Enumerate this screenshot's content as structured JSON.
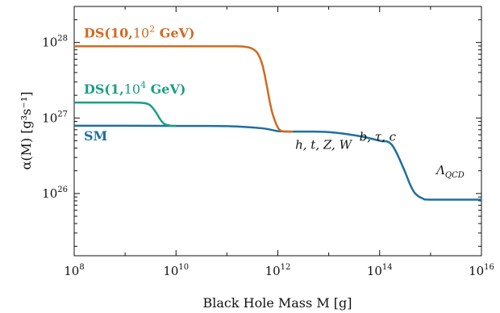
{
  "chart_data": {
    "type": "line",
    "xlabel": "Black Hole Mass M [g]",
    "ylabel": "α(M) [g³s⁻¹]",
    "xscale": "log",
    "yscale": "log",
    "xlim": [
      100000000.0,
      1e+16
    ],
    "ylim": [
      1.5e+25,
      3e+28
    ],
    "x_ticks": [
      {
        "mantissa": "10",
        "exp": "8"
      },
      {
        "mantissa": "10",
        "exp": "10"
      },
      {
        "mantissa": "10",
        "exp": "12"
      },
      {
        "mantissa": "10",
        "exp": "14"
      },
      {
        "mantissa": "10",
        "exp": "16"
      }
    ],
    "x_tick_values": [
      100000000.0,
      10000000000.0,
      1000000000000.0,
      100000000000000.0,
      1e+16
    ],
    "y_ticks": [
      {
        "mantissa": "10",
        "exp": "26"
      },
      {
        "mantissa": "10",
        "exp": "27"
      },
      {
        "mantissa": "10",
        "exp": "28"
      }
    ],
    "y_tick_values": [
      1e+26,
      1e+27,
      1e+28
    ],
    "grid": false,
    "series": [
      {
        "name": "SM",
        "label_parts": [
          "SM"
        ],
        "color": "#1f6f9f",
        "x": [
          100000000.0,
          1000000000.0,
          10000000000.0,
          100000000000.0,
          500000000000.0,
          1000000000000.0,
          2000000000000.0,
          5000000000000.0,
          10000000000000.0,
          20000000000000.0,
          50000000000000.0,
          100000000000000.0,
          150000000000000.0,
          200000000000000.0,
          300000000000000.0,
          400000000000000.0,
          500000000000000.0,
          700000000000000.0,
          1000000000000000.0,
          1e+16
        ],
        "y": [
          7.9e+26,
          7.9e+26,
          7.85e+26,
          7.8e+26,
          7.3e+26,
          6.7e+26,
          6.6e+26,
          6.6e+26,
          6.5e+26,
          6.2e+26,
          5.6e+26,
          5e+26,
          4.8e+26,
          3.8e+26,
          2.1e+26,
          1.3e+26,
          1e+26,
          8.6e+25,
          8.3e+25,
          8.3e+25
        ]
      },
      {
        "name": "DS(1,10⁴ GeV)",
        "label_parts": [
          "DS(1,",
          "10",
          "4",
          " GeV)"
        ],
        "color": "#1a9f7f",
        "x": [
          100000000.0,
          1000000000.0,
          2000000000.0,
          3000000000.0,
          4000000000.0,
          5000000000.0,
          6000000000.0,
          8000000000.0,
          10000000000.0
        ],
        "y": [
          1.6e+27,
          1.6e+27,
          1.59e+27,
          1.5e+27,
          1.2e+27,
          9.4e+26,
          8.3e+26,
          7.9e+26,
          7.85e+26
        ]
      },
      {
        "name": "DS(10,10² GeV)",
        "label_parts": [
          "DS(10,",
          "10",
          "2",
          " GeV)"
        ],
        "color": "#d2691e",
        "x": [
          100000000.0,
          10000000000.0,
          100000000000.0,
          200000000000.0,
          300000000000.0,
          400000000000.0,
          500000000000.0,
          600000000000.0,
          700000000000.0,
          800000000000.0,
          1000000000000.0,
          1200000000000.0,
          1500000000000.0,
          2000000000000.0
        ],
        "y": [
          8.9e+27,
          8.9e+27,
          8.9e+27,
          8.85e+27,
          8.4e+27,
          7.2e+27,
          5e+27,
          2.8e+27,
          1.6e+27,
          1.1e+27,
          7.5e+26,
          6.7e+26,
          6.6e+26,
          6.6e+26
        ]
      }
    ],
    "annotations": [
      {
        "text": "h, t, Z, W",
        "x": 2200000000000.0,
        "y": 3.9e+26
      },
      {
        "text": "b, τ, c",
        "x": 40000000000000.0,
        "y": 5e+26
      },
      {
        "text": "Λ",
        "sub": "QCD",
        "x": 1300000000000000.0,
        "y": 1.8e+26
      }
    ]
  }
}
